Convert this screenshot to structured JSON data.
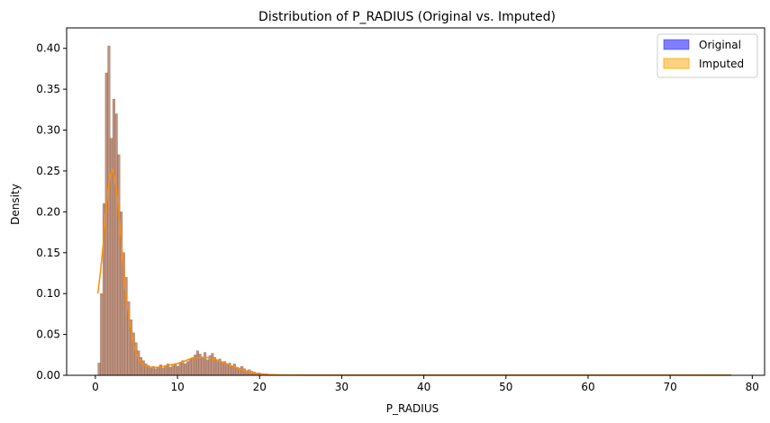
{
  "chart_data": {
    "type": "bar",
    "title": "Distribution of P_RADIUS (Original vs. Imputed)",
    "xlabel": "P_RADIUS",
    "ylabel": "Density",
    "xlim": [
      -3.5,
      81.5
    ],
    "ylim": [
      0,
      0.425
    ],
    "xticks": [
      0,
      10,
      20,
      30,
      40,
      50,
      60,
      70,
      80
    ],
    "yticks": [
      0.0,
      0.05,
      0.1,
      0.15,
      0.2,
      0.25,
      0.3,
      0.35,
      0.4
    ],
    "grid": false,
    "legend": {
      "placement": "top-right"
    },
    "bin_width": 0.3,
    "histogram": {
      "bin_starts": [
        0.3,
        0.6,
        0.9,
        1.2,
        1.5,
        1.8,
        2.1,
        2.4,
        2.7,
        3.0,
        3.3,
        3.6,
        3.9,
        4.2,
        4.5,
        4.8,
        5.1,
        5.4,
        5.7,
        6.0,
        6.3,
        6.6,
        6.9,
        7.2,
        7.5,
        7.8,
        8.1,
        8.4,
        8.7,
        9.0,
        9.3,
        9.6,
        9.9,
        10.2,
        10.5,
        10.8,
        11.1,
        11.4,
        11.7,
        12.0,
        12.3,
        12.6,
        12.9,
        13.2,
        13.5,
        13.8,
        14.1,
        14.4,
        14.7,
        15.0,
        15.3,
        15.6,
        15.9,
        16.2,
        16.5,
        16.8,
        17.1,
        17.4,
        17.7,
        18.0,
        18.3,
        18.6,
        18.9,
        19.2,
        19.5,
        19.8,
        20.1,
        20.4,
        20.7,
        21.0,
        21.3,
        21.6,
        21.9,
        22.2,
        22.5
      ],
      "densities": [
        0.015,
        0.1,
        0.21,
        0.37,
        0.403,
        0.29,
        0.338,
        0.32,
        0.27,
        0.2,
        0.15,
        0.12,
        0.09,
        0.068,
        0.052,
        0.04,
        0.03,
        0.022,
        0.018,
        0.014,
        0.012,
        0.009,
        0.011,
        0.008,
        0.01,
        0.013,
        0.009,
        0.011,
        0.014,
        0.01,
        0.012,
        0.013,
        0.011,
        0.016,
        0.018,
        0.014,
        0.017,
        0.02,
        0.022,
        0.025,
        0.03,
        0.026,
        0.021,
        0.028,
        0.019,
        0.024,
        0.027,
        0.022,
        0.018,
        0.02,
        0.016,
        0.017,
        0.013,
        0.015,
        0.012,
        0.014,
        0.01,
        0.009,
        0.011,
        0.008,
        0.006,
        0.007,
        0.005,
        0.004,
        0.003,
        0.003,
        0.002,
        0.002,
        0.002,
        0.001,
        0.001,
        0.001,
        0.001,
        0.001,
        0.0005
      ],
      "tail_start": 22.8,
      "tail_end": 77.4,
      "tail_density": 0.001
    },
    "series": [
      {
        "name": "Original",
        "color": "#0000ff",
        "fill_opacity": 0.5
      },
      {
        "name": "Imputed",
        "color": "#ffa500",
        "fill_opacity": 0.5
      }
    ],
    "kde": {
      "color": "#ff8c00",
      "x": [
        0.3,
        0.6,
        0.9,
        1.2,
        1.5,
        1.8,
        2.1,
        2.4,
        2.7,
        3.0,
        3.3,
        3.6,
        3.9,
        4.2,
        4.5,
        4.8,
        5.1,
        5.4,
        5.7,
        6.0,
        6.5,
        7.0,
        7.5,
        8.0,
        8.5,
        9.0,
        9.5,
        10.0,
        10.5,
        11.0,
        11.5,
        12.0,
        12.5,
        13.0,
        13.5,
        14.0,
        14.5,
        15.0,
        15.5,
        16.0,
        16.5,
        17.0,
        17.5,
        18.0,
        18.5,
        19.0,
        19.5,
        20.0,
        21.0,
        22.0,
        23.0,
        24.0,
        26.0,
        30.0,
        35.0,
        40.0,
        50.0,
        60.0,
        70.0,
        77.4
      ],
      "y": [
        0.1,
        0.125,
        0.155,
        0.19,
        0.223,
        0.245,
        0.251,
        0.24,
        0.215,
        0.18,
        0.145,
        0.112,
        0.085,
        0.062,
        0.045,
        0.033,
        0.024,
        0.018,
        0.014,
        0.012,
        0.01,
        0.0095,
        0.0098,
        0.0105,
        0.0115,
        0.0125,
        0.0135,
        0.0145,
        0.016,
        0.018,
        0.02,
        0.021,
        0.0215,
        0.022,
        0.0218,
        0.021,
        0.0198,
        0.018,
        0.016,
        0.014,
        0.0118,
        0.0098,
        0.008,
        0.0062,
        0.0048,
        0.0036,
        0.0026,
        0.0019,
        0.001,
        0.0006,
        0.0004,
        0.0003,
        0.0002,
        0.0001,
        0.0001,
        0.0001,
        0.0001,
        0.0001,
        0.0001,
        0.0001
      ]
    }
  }
}
